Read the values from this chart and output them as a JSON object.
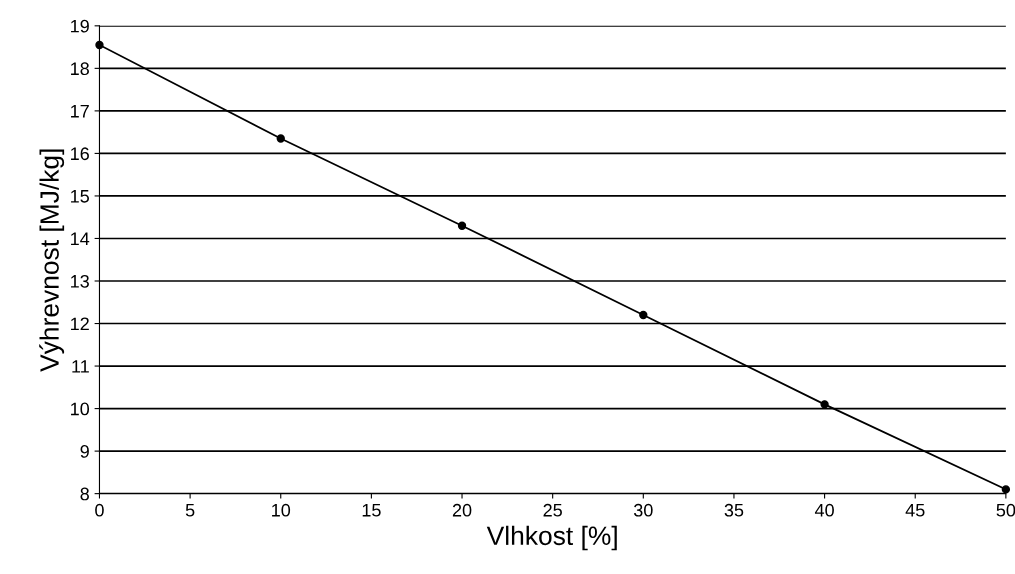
{
  "chart_data": {
    "type": "line",
    "xlabel": "Vlhkost [%]",
    "ylabel": "Výhrevnost [MJ/kg]",
    "x": [
      0,
      10,
      20,
      30,
      40,
      50
    ],
    "series": [
      {
        "color": "#000000",
        "values": [
          18.55,
          16.35,
          14.3,
          12.2,
          10.1,
          8.1
        ]
      }
    ],
    "xlim": [
      0,
      50
    ],
    "xticks": [
      0,
      5,
      10,
      15,
      20,
      25,
      30,
      35,
      40,
      45,
      50
    ],
    "ylim": [
      8,
      19
    ],
    "yticks": [
      8,
      9,
      10,
      11,
      12,
      13,
      14,
      15,
      16,
      17,
      18,
      19
    ],
    "grid": "y",
    "marker": "circle",
    "line_style": "solid"
  }
}
